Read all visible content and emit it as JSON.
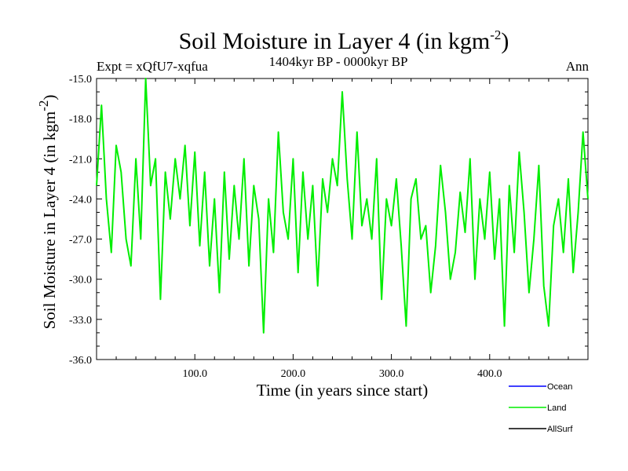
{
  "chart_data": {
    "type": "line",
    "title": "Soil Moisture in Layer 4 (in kgm",
    "title_exponent": "-2",
    "title_close": ")",
    "subtitle_left": "Expt = xQfU7-xqfua",
    "subtitle_center": "1404kyr BP - 0000kyr BP",
    "subtitle_right": "Ann",
    "xlabel": "Time (in years since start)",
    "ylabel": "Soil Moisture in Layer 4 (in kgm",
    "ylabel_exponent": "-2",
    "ylabel_close": ")",
    "xlim": [
      0,
      500
    ],
    "ylim": [
      -36,
      -15
    ],
    "x_ticks": [
      100,
      200,
      300,
      400
    ],
    "x_tick_labels": [
      "100.0",
      "200.0",
      "300.0",
      "400.0"
    ],
    "y_ticks": [
      -15,
      -18,
      -21,
      -24,
      -27,
      -30,
      -33,
      -36
    ],
    "y_tick_labels": [
      "-15.0",
      "-18.0",
      "-21.0",
      "-24.0",
      "-27.0",
      "-30.0",
      "-33.0",
      "-36.0"
    ],
    "legend": [
      {
        "name": "Ocean",
        "color": "#0000ff"
      },
      {
        "name": "Land",
        "color": "#00ee00"
      },
      {
        "name": "AllSurf",
        "color": "#000000"
      }
    ],
    "series": [
      {
        "name": "Land",
        "color": "#00ee00",
        "x": [
          0,
          5,
          10,
          15,
          20,
          25,
          30,
          35,
          40,
          45,
          50,
          55,
          60,
          65,
          70,
          75,
          80,
          85,
          90,
          95,
          100,
          105,
          110,
          115,
          120,
          125,
          130,
          135,
          140,
          145,
          150,
          155,
          160,
          165,
          170,
          175,
          180,
          185,
          190,
          195,
          200,
          205,
          210,
          215,
          220,
          225,
          230,
          235,
          240,
          245,
          250,
          255,
          260,
          265,
          270,
          275,
          280,
          285,
          290,
          295,
          300,
          305,
          310,
          315,
          320,
          325,
          330,
          335,
          340,
          345,
          350,
          355,
          360,
          365,
          370,
          375,
          380,
          385,
          390,
          395,
          400,
          405,
          410,
          415,
          420,
          425,
          430,
          435,
          440,
          445,
          450,
          455,
          460,
          465,
          470,
          475,
          480,
          485,
          490,
          495,
          500
        ],
        "values": [
          -23.0,
          -17.0,
          -24.0,
          -28.0,
          -20.0,
          -22.0,
          -27.0,
          -29.0,
          -21.0,
          -27.0,
          -15.0,
          -23.0,
          -21.0,
          -31.5,
          -22.0,
          -25.5,
          -21.0,
          -24.0,
          -20.0,
          -26.0,
          -20.5,
          -27.5,
          -22.0,
          -29.0,
          -24.0,
          -31.0,
          -22.0,
          -28.5,
          -23.0,
          -27.0,
          -21.0,
          -29.0,
          -23.0,
          -25.5,
          -34.0,
          -24.0,
          -28.0,
          -19.0,
          -25.0,
          -27.0,
          -21.0,
          -29.5,
          -22.0,
          -27.0,
          -23.0,
          -30.5,
          -22.5,
          -25.0,
          -21.0,
          -23.0,
          -16.0,
          -22.5,
          -27.0,
          -19.0,
          -26.0,
          -24.0,
          -27.0,
          -21.0,
          -31.5,
          -24.0,
          -26.0,
          -22.5,
          -27.5,
          -33.5,
          -24.0,
          -22.5,
          -27.0,
          -26.0,
          -31.0,
          -27.5,
          -21.5,
          -25.0,
          -30.0,
          -28.0,
          -23.5,
          -26.5,
          -21.0,
          -30.0,
          -24.0,
          -27.0,
          -22.0,
          -28.5,
          -24.0,
          -33.5,
          -23.0,
          -28.0,
          -20.5,
          -25.0,
          -31.0,
          -27.0,
          -21.5,
          -30.5,
          -33.5,
          -26.0,
          -24.0,
          -28.0,
          -22.5,
          -29.5,
          -25.0,
          -19.0,
          -24.0
        ]
      },
      {
        "name": "Ocean",
        "color": "#0000ff",
        "values": []
      },
      {
        "name": "AllSurf",
        "color": "#000000",
        "values": []
      }
    ]
  }
}
